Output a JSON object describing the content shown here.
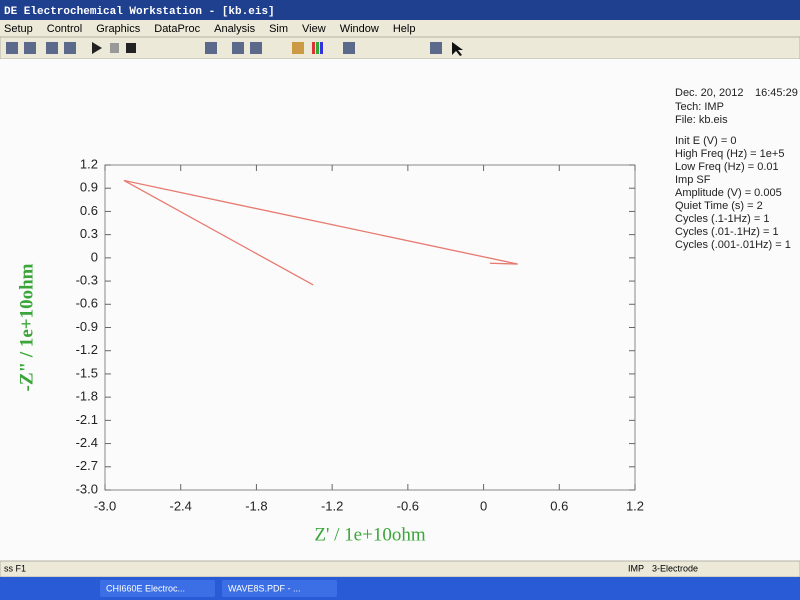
{
  "window": {
    "title": "DE Electrochemical Workstation - [kb.eis]"
  },
  "menu": [
    "Setup",
    "Control",
    "Graphics",
    "DataProc",
    "Analysis",
    "Sim",
    "View",
    "Window",
    "Help"
  ],
  "info": {
    "date": "Dec. 20, 2012",
    "time": "16:45:29",
    "lines": [
      "Tech: IMP",
      "File: kb.eis"
    ],
    "params": [
      "Init E (V) = 0",
      "High Freq (Hz) = 1e+5",
      "Low Freq (Hz) = 0.01",
      "Imp SF",
      "Amplitude (V) = 0.005",
      "Quiet Time (s) = 2",
      "Cycles (.1-1Hz) = 1",
      "Cycles (.01-.1Hz) = 1",
      "Cycles (.001-.01Hz) = 1"
    ]
  },
  "status": {
    "left": "ss F1",
    "mode": "IMP",
    "electrode": "3-Electrode"
  },
  "taskbar": [
    "CHI660E Electroc...",
    "WAVE8S.PDF - ..."
  ],
  "chart_data": {
    "type": "line",
    "x_label": "Z' / 1e+10ohm",
    "y_label": "-Z\" / 1e+10ohm",
    "x": [
      -1.35,
      -2.85,
      0.27,
      0.05
    ],
    "values": [
      -0.35,
      1.0,
      -0.08,
      -0.07
    ],
    "color": "#e8796f",
    "label_color": "#3aa63a",
    "xlim": [
      -3.0,
      1.2
    ],
    "xticks": [
      {
        "value": -3.0,
        "label": "-3.0"
      },
      -2.4,
      -1.8,
      -1.2,
      -0.6,
      0,
      0.6,
      1.2
    ],
    "ylim": [
      -3.0,
      1.2
    ],
    "yticks": [
      1.2,
      0.9,
      0.6,
      0.3,
      0,
      -0.3,
      -0.6,
      -0.9,
      -1.2,
      -1.5,
      -1.8,
      -2.1,
      -2.4,
      -2.7,
      {
        "value": -3.0,
        "label": "-3.0"
      }
    ]
  }
}
